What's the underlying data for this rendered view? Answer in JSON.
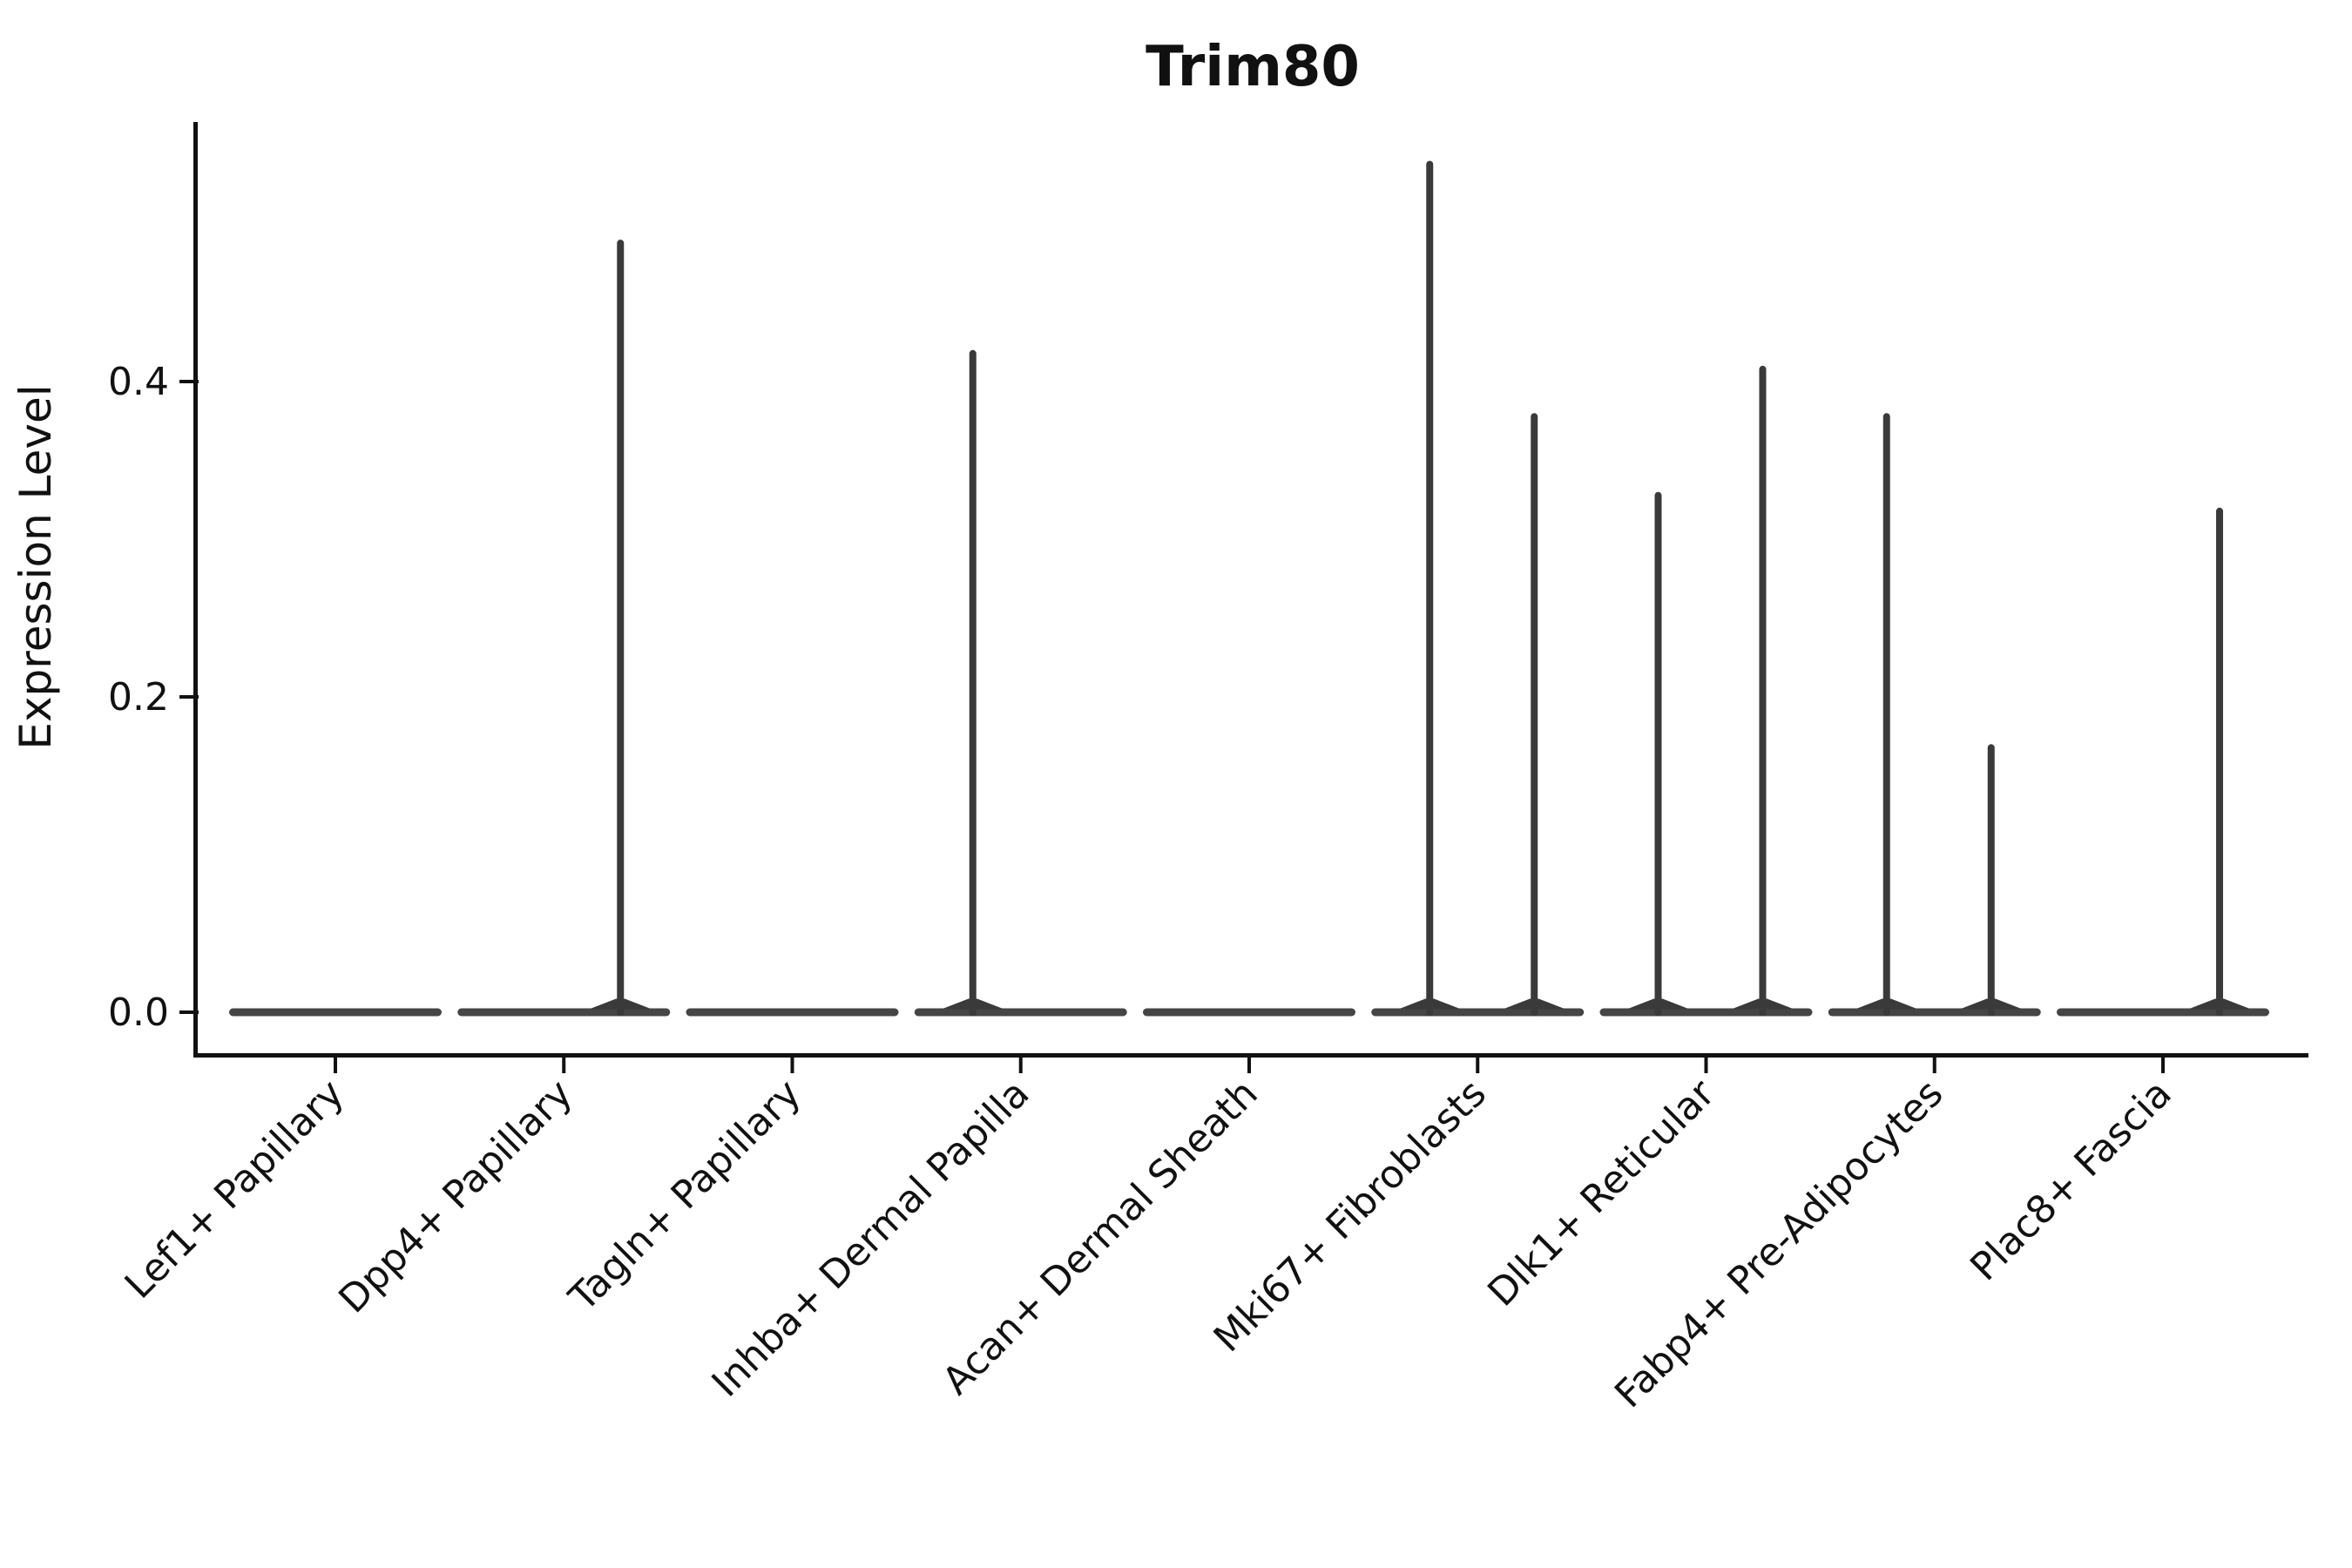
{
  "page": {
    "background": "#ffffff"
  },
  "chart_data": {
    "type": "violin",
    "title": "Trim80",
    "ylabel": "Expression Level",
    "xlabel": "",
    "grid": false,
    "legend": null,
    "ylim": [
      -0.03,
      0.565
    ],
    "yticks": [
      {
        "label": "0.0",
        "value": 0.0
      },
      {
        "label": "0.2",
        "value": 0.2
      },
      {
        "label": "0.4",
        "value": 0.4
      }
    ],
    "colors": {
      "violin_fill": "#454545",
      "spike_fill": "#3a3a3a",
      "axis": "#111111",
      "text": "#111111",
      "background": "#ffffff"
    },
    "categories": [
      "Lef1+ Papillary",
      "Dpp4+ Papillary",
      "Tagln+ Papillary",
      "Inhba+ Dermal Papilla",
      "Acan+ Dermal Sheath",
      "Mki67+ Fibroblasts",
      "Dlk1+ Reticular",
      "Fabp4+ Pre-Adipocytes",
      "Plac8+ Fascia"
    ],
    "violins": [
      {
        "category": "Lef1+ Papillary",
        "baseline_value": 0.0,
        "spikes": []
      },
      {
        "category": "Dpp4+ Papillary",
        "baseline_value": 0.0,
        "spikes": [
          {
            "position": "right",
            "max": 0.49
          }
        ]
      },
      {
        "category": "Tagln+ Papillary",
        "baseline_value": 0.0,
        "spikes": []
      },
      {
        "category": "Inhba+ Dermal Papilla",
        "baseline_value": 0.0,
        "spikes": [
          {
            "position": "left",
            "max": 0.42
          }
        ]
      },
      {
        "category": "Acan+ Dermal Sheath",
        "baseline_value": 0.0,
        "spikes": []
      },
      {
        "category": "Mki67+ Fibroblasts",
        "baseline_value": 0.0,
        "spikes": [
          {
            "position": "left",
            "max": 0.54
          },
          {
            "position": "right",
            "max": 0.38
          }
        ]
      },
      {
        "category": "Dlk1+ Reticular",
        "baseline_value": 0.0,
        "spikes": [
          {
            "position": "left",
            "max": 0.33
          },
          {
            "position": "right",
            "max": 0.41
          }
        ]
      },
      {
        "category": "Fabp4+ Pre-Adipocytes",
        "baseline_value": 0.0,
        "spikes": [
          {
            "position": "left",
            "max": 0.38
          },
          {
            "position": "right",
            "max": 0.17
          }
        ]
      },
      {
        "category": "Plac8+ Fascia",
        "baseline_value": 0.0,
        "spikes": [
          {
            "position": "right",
            "max": 0.32
          }
        ]
      }
    ]
  }
}
